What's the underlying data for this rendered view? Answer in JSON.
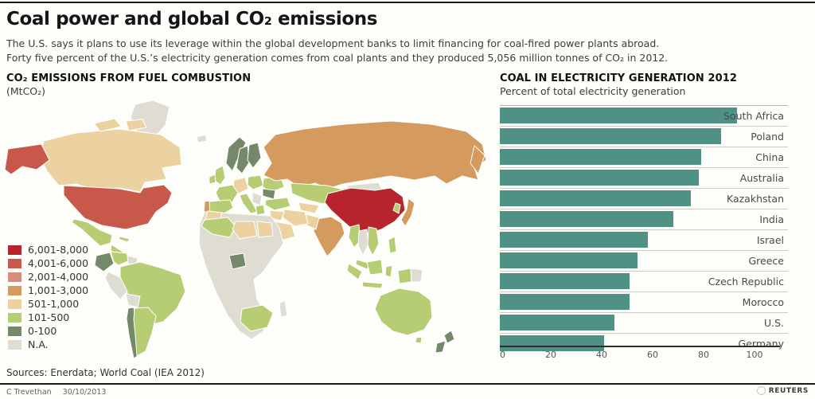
{
  "header": {
    "title": "Coal power and global CO₂ emissions",
    "subtitle_line1": "The U.S. says it plans to use its leverage within the global development banks to limit financing for coal-fired power plants abroad.",
    "subtitle_line2": "Forty five percent of the U.S.’s electricity generation comes from coal plants and they produced 5,056 million tonnes of CO₂ in 2012."
  },
  "map_panel": {
    "title": "CO₂ EMISSIONS FROM FUEL COMBUSTION",
    "subtitle": "(MtCO₂)",
    "palette": {
      "6,001-8,000": "#b8242b",
      "4,001-6,000": "#c8584a",
      "2,001-4,000": "#d88d7c",
      "1,001-3,000": "#d49a5e",
      "501-1,000": "#ecd2a0",
      "101-500": "#b6cd74",
      "0-100": "#74886a",
      "N.A.": "#dfddd1"
    },
    "legend": [
      "6,001-8,000",
      "4,001-6,000",
      "2,001-4,000",
      "1,001-3,000",
      "501-1,000",
      "101-500",
      "0-100",
      "N.A."
    ],
    "regions": {
      "greenland": {
        "name": "Greenland",
        "bin": "N.A."
      },
      "canada": {
        "name": "Canada",
        "bin": "501-1,000"
      },
      "canada_arctic": {
        "name": "Canada (Arctic islands)",
        "bin": "501-1,000"
      },
      "alaska": {
        "name": "United States (Alaska)",
        "bin": "4,001-6,000"
      },
      "usa": {
        "name": "United States",
        "bin": "4,001-6,000"
      },
      "mexico": {
        "name": "Mexico",
        "bin": "101-500"
      },
      "central_america": {
        "name": "Central America",
        "bin": "101-500"
      },
      "cuba": {
        "name": "Cuba",
        "bin": "101-500"
      },
      "colombia": {
        "name": "Colombia",
        "bin": "0-100"
      },
      "venezuela": {
        "name": "Venezuela",
        "bin": "101-500"
      },
      "guyanas": {
        "name": "Guyanas",
        "bin": "N.A."
      },
      "brazil": {
        "name": "Brazil",
        "bin": "101-500"
      },
      "peru": {
        "name": "Peru",
        "bin": "N.A."
      },
      "bolivia": {
        "name": "Bolivia",
        "bin": "N.A."
      },
      "chile": {
        "name": "Chile",
        "bin": "0-100"
      },
      "argentina": {
        "name": "Argentina",
        "bin": "101-500"
      },
      "iceland": {
        "name": "Iceland",
        "bin": "N.A."
      },
      "norway": {
        "name": "Norway",
        "bin": "0-100"
      },
      "sweden": {
        "name": "Sweden",
        "bin": "0-100"
      },
      "finland": {
        "name": "Finland",
        "bin": "0-100"
      },
      "uk": {
        "name": "United Kingdom",
        "bin": "101-500"
      },
      "ireland": {
        "name": "Ireland",
        "bin": "101-500"
      },
      "germany": {
        "name": "Germany",
        "bin": "501-1,000"
      },
      "poland": {
        "name": "Poland",
        "bin": "101-500"
      },
      "france": {
        "name": "France",
        "bin": "101-500"
      },
      "spain": {
        "name": "Spain",
        "bin": "101-500"
      },
      "portugal": {
        "name": "Portugal",
        "bin": "1,001-3,000"
      },
      "italy": {
        "name": "Italy",
        "bin": "101-500"
      },
      "ukraine": {
        "name": "Ukraine",
        "bin": "101-500"
      },
      "romania": {
        "name": "Romania",
        "bin": "0-100"
      },
      "balkans": {
        "name": "Balkans",
        "bin": "N.A."
      },
      "greece": {
        "name": "Greece",
        "bin": "101-500"
      },
      "turkey": {
        "name": "Turkey",
        "bin": "101-500"
      },
      "russia": {
        "name": "Russia",
        "bin": "1,001-3,000"
      },
      "kamchatka": {
        "name": "Russia (Far East)",
        "bin": "1,001-3,000"
      },
      "kazakhstan": {
        "name": "Kazakhstan",
        "bin": "101-500"
      },
      "central_asia": {
        "name": "Central Asia",
        "bin": "501-1,000"
      },
      "mongolia": {
        "name": "Mongolia",
        "bin": "N.A."
      },
      "china": {
        "name": "China",
        "bin": "6,001-8,000"
      },
      "korea": {
        "name": "South Korea",
        "bin": "101-500"
      },
      "japan": {
        "name": "Japan",
        "bin": "1,001-3,000"
      },
      "india": {
        "name": "India",
        "bin": "1,001-3,000"
      },
      "pakistan": {
        "name": "Pakistan",
        "bin": "501-1,000"
      },
      "iran": {
        "name": "Iran",
        "bin": "501-1,000"
      },
      "iraq_syria": {
        "name": "Iraq / Syria",
        "bin": "501-1,000"
      },
      "saudi": {
        "name": "Saudi Arabia",
        "bin": "501-1,000"
      },
      "africa": {
        "name": "Africa (most)",
        "bin": "N.A."
      },
      "morocco": {
        "name": "Morocco",
        "bin": "501-1,000"
      },
      "algeria": {
        "name": "Algeria",
        "bin": "101-500"
      },
      "libya": {
        "name": "Libya",
        "bin": "501-1,000"
      },
      "egypt": {
        "name": "Egypt",
        "bin": "501-1,000"
      },
      "nigeria": {
        "name": "Nigeria",
        "bin": "0-100"
      },
      "south_africa": {
        "name": "South Africa",
        "bin": "101-500"
      },
      "madagascar": {
        "name": "Madagascar",
        "bin": "N.A."
      },
      "myanmar": {
        "name": "Myanmar",
        "bin": "101-500"
      },
      "thailand": {
        "name": "Thailand",
        "bin": "N.A."
      },
      "vietnam": {
        "name": "Vietnam",
        "bin": "101-500"
      },
      "malaysia": {
        "name": "Malaysia",
        "bin": "101-500"
      },
      "indonesia": {
        "name": "Indonesia",
        "bin": "101-500"
      },
      "png_west": {
        "name": "Papua (Indonesia)",
        "bin": "101-500"
      },
      "png_east": {
        "name": "Papua New Guinea",
        "bin": "N.A."
      },
      "philippines": {
        "name": "Philippines",
        "bin": "101-500"
      },
      "australia": {
        "name": "Australia",
        "bin": "101-500"
      },
      "tasmania": {
        "name": "Australia (Tasmania)",
        "bin": "101-500"
      },
      "new_zealand": {
        "name": "New Zealand",
        "bin": "0-100"
      }
    }
  },
  "bar_panel": {
    "title": "COAL IN ELECTRICITY GENERATION 2012",
    "subtitle": "Percent of total electricity generation",
    "bar_color": "#4f9184",
    "axis_ticks": [
      0,
      20,
      40,
      60,
      80,
      100
    ],
    "bars": [
      {
        "label": "South Africa",
        "value": 93
      },
      {
        "label": "Poland",
        "value": 87
      },
      {
        "label": "China",
        "value": 79
      },
      {
        "label": "Australia",
        "value": 78
      },
      {
        "label": "Kazakhstan",
        "value": 75
      },
      {
        "label": "India",
        "value": 68
      },
      {
        "label": "Israel",
        "value": 58
      },
      {
        "label": "Greece",
        "value": 54
      },
      {
        "label": "Czech Republic",
        "value": 51
      },
      {
        "label": "Morocco",
        "value": 51
      },
      {
        "label": "U.S.",
        "value": 45
      },
      {
        "label": "Germany",
        "value": 41
      }
    ]
  },
  "footer": {
    "sources": "Sources: Enerdata; World Coal (IEA 2012)",
    "credit": "C Trevethan",
    "date": "30/10/2013",
    "brand": "REUTERS"
  },
  "chart_data": [
    {
      "type": "bar",
      "orientation": "horizontal",
      "title": "COAL IN ELECTRICITY GENERATION 2012",
      "subtitle": "Percent of total electricity generation",
      "categories": [
        "South Africa",
        "Poland",
        "China",
        "Australia",
        "Kazakhstan",
        "India",
        "Israel",
        "Greece",
        "Czech Republic",
        "Morocco",
        "U.S.",
        "Germany"
      ],
      "values": [
        93,
        87,
        79,
        78,
        75,
        68,
        58,
        54,
        51,
        51,
        45,
        41
      ],
      "xlabel": "Percent",
      "ylabel": "",
      "xlim": [
        0,
        100
      ],
      "x_ticks": [
        0,
        20,
        40,
        60,
        80,
        100
      ],
      "bar_color": "#4f9184",
      "grid": false,
      "legend_position": "none"
    },
    {
      "type": "heatmap",
      "subtype": "choropleth-world-map",
      "title": "CO₂ EMISSIONS FROM FUEL COMBUSTION (MtCO₂)",
      "legend_bins": [
        "6,001-8,000",
        "4,001-6,000",
        "2,001-4,000",
        "1,001-3,000",
        "501-1,000",
        "101-500",
        "0-100",
        "N.A."
      ],
      "bin_colors": [
        "#b8242b",
        "#c8584a",
        "#d88d7c",
        "#d49a5e",
        "#ecd2a0",
        "#b6cd74",
        "#74886a",
        "#dfddd1"
      ],
      "region_bins": {
        "China": "6,001-8,000",
        "United States": "4,001-6,000",
        "Russia": "1,001-3,000",
        "India": "1,001-3,000",
        "Japan": "1,001-3,000",
        "Portugal": "1,001-3,000",
        "Canada": "501-1,000",
        "Germany": "501-1,000",
        "Iran": "501-1,000",
        "Saudi Arabia": "501-1,000",
        "Morocco": "501-1,000",
        "Libya": "501-1,000",
        "Egypt": "501-1,000",
        "United Kingdom": "101-500",
        "Ireland": "101-500",
        "France": "101-500",
        "Spain": "101-500",
        "Italy": "101-500",
        "Poland": "101-500",
        "Ukraine": "101-500",
        "Greece": "101-500",
        "Turkey": "101-500",
        "Kazakhstan": "101-500",
        "Mexico": "101-500",
        "Brazil": "101-500",
        "Argentina": "101-500",
        "Venezuela": "101-500",
        "Algeria": "101-500",
        "South Africa": "101-500",
        "Indonesia": "101-500",
        "Malaysia": "101-500",
        "Philippines": "101-500",
        "Vietnam": "101-500",
        "Australia": "101-500",
        "Norway": "0-100",
        "Sweden": "0-100",
        "Finland": "0-100",
        "Romania": "0-100",
        "Colombia": "0-100",
        "Chile": "0-100",
        "Nigeria": "0-100",
        "New Zealand": "0-100",
        "Greenland": "N.A.",
        "Mongolia": "N.A.",
        "Peru": "N.A.",
        "Bolivia": "N.A.",
        "Thailand": "N.A.",
        "Papua New Guinea": "N.A.",
        "Madagascar": "N.A.",
        "Africa (most)": "N.A."
      }
    }
  ]
}
